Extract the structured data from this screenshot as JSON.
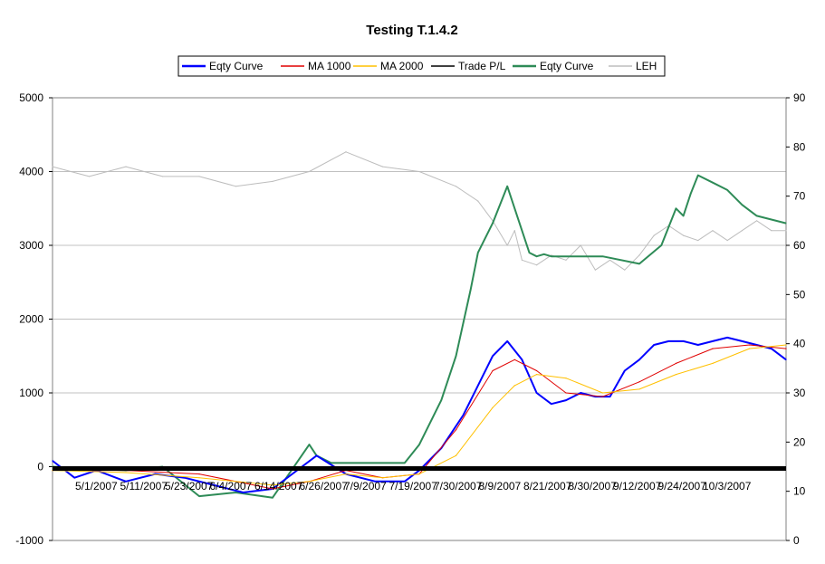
{
  "chart_data": {
    "type": "line",
    "title": "Testing T.1.4.2",
    "legend": {
      "position": "top",
      "entries": [
        {
          "name": "Eqty Curve",
          "color": "#0000ff"
        },
        {
          "name": "MA 1000",
          "color": "#e00000"
        },
        {
          "name": "MA 2000",
          "color": "#ffc000"
        },
        {
          "name": "Trade P/L",
          "color": "#000000"
        },
        {
          "name": "Eqty Curve",
          "color": "#2e8b57"
        },
        {
          "name": "LEH",
          "color": "#bdbdbd"
        }
      ]
    },
    "grid": "horizontal",
    "y_left": {
      "min": -1000,
      "max": 5000,
      "ticks": [
        -1000,
        0,
        1000,
        2000,
        3000,
        4000,
        5000
      ]
    },
    "y_right": {
      "min": 0,
      "max": 90,
      "ticks": [
        0,
        10,
        20,
        30,
        40,
        50,
        60,
        70,
        80,
        90
      ]
    },
    "x_tick_labels": [
      "5/1/2007",
      "5/11/2007",
      "5/23/2007",
      "6/4/2007",
      "6/14/2007",
      "6/26/2007",
      "7/9/2007",
      "7/19/2007",
      "7/30/2007",
      "8/9/2007",
      "8/21/2007",
      "8/30/2007",
      "9/12/2007",
      "9/24/2007",
      "10/3/2007"
    ],
    "x_range": [
      0,
      100
    ],
    "series": [
      {
        "name": "LEH",
        "axis": "right",
        "color": "#bdbdbd",
        "x": [
          0,
          5,
          10,
          15,
          20,
          25,
          30,
          35,
          40,
          45,
          50,
          55,
          58,
          60,
          62,
          63,
          64,
          66,
          68,
          70,
          72,
          74,
          76,
          78,
          80,
          82,
          84,
          86,
          88,
          90,
          92,
          94,
          96,
          98,
          100
        ],
        "values": [
          76,
          74,
          76,
          74,
          74,
          72,
          73,
          75,
          79,
          76,
          75,
          72,
          69,
          65,
          60,
          63,
          57,
          56,
          58,
          57,
          60,
          55,
          57,
          55,
          58,
          62,
          64,
          62,
          61,
          63,
          61,
          63,
          65,
          63,
          63
        ]
      },
      {
        "name": "Eqty Curve",
        "axis": "left",
        "color": "#2e8b57",
        "x": [
          0,
          10,
          15,
          20,
          25,
          30,
          35,
          36,
          38,
          40,
          48,
          50,
          53,
          55,
          57,
          58,
          60,
          62,
          64,
          65,
          66,
          67,
          68,
          75,
          80,
          83,
          85,
          86,
          87,
          88,
          90,
          92,
          94,
          96,
          100
        ],
        "values": [
          0,
          -50,
          0,
          -400,
          -350,
          -420,
          300,
          150,
          50,
          50,
          50,
          300,
          900,
          1500,
          2400,
          2900,
          3300,
          3800,
          3200,
          2900,
          2850,
          2880,
          2850,
          2850,
          2750,
          3000,
          3500,
          3400,
          3700,
          3950,
          3850,
          3750,
          3550,
          3400,
          3300
        ]
      },
      {
        "name": "Eqty Curve",
        "axis": "left",
        "color": "#0000ff",
        "x": [
          0,
          3,
          6,
          10,
          14,
          18,
          22,
          26,
          30,
          36,
          40,
          44,
          48,
          50,
          53,
          56,
          58,
          60,
          62,
          64,
          66,
          68,
          70,
          72,
          74,
          76,
          78,
          80,
          82,
          84,
          86,
          88,
          90,
          92,
          94,
          96,
          98,
          100
        ],
        "values": [
          80,
          -150,
          -50,
          -200,
          -100,
          -150,
          -250,
          -350,
          -300,
          150,
          -100,
          -200,
          -200,
          -50,
          250,
          700,
          1100,
          1500,
          1700,
          1450,
          1000,
          850,
          900,
          1000,
          950,
          950,
          1300,
          1450,
          1650,
          1700,
          1700,
          1650,
          1700,
          1750,
          1700,
          1650,
          1600,
          1450
        ]
      },
      {
        "name": "MA 1000",
        "axis": "left",
        "color": "#e00000",
        "x": [
          0,
          10,
          20,
          30,
          35,
          40,
          45,
          50,
          55,
          60,
          63,
          66,
          70,
          75,
          80,
          85,
          90,
          95,
          100
        ],
        "values": [
          -50,
          -50,
          -100,
          -300,
          -200,
          -50,
          -150,
          -100,
          500,
          1300,
          1450,
          1300,
          1000,
          950,
          1150,
          1400,
          1600,
          1650,
          1600
        ]
      },
      {
        "name": "MA 2000",
        "axis": "left",
        "color": "#ffc000",
        "x": [
          0,
          10,
          20,
          30,
          35,
          40,
          45,
          50,
          55,
          60,
          63,
          66,
          70,
          75,
          80,
          85,
          90,
          95,
          100
        ],
        "values": [
          -50,
          -80,
          -150,
          -250,
          -200,
          -100,
          -150,
          -100,
          150,
          800,
          1100,
          1250,
          1200,
          1000,
          1050,
          1250,
          1400,
          1600,
          1650
        ]
      }
    ]
  }
}
